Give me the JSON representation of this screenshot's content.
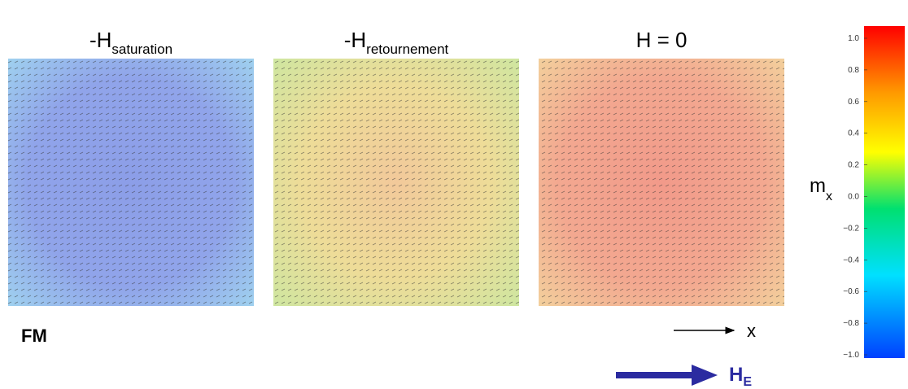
{
  "panels": [
    {
      "title": "-H",
      "subscript": "saturation"
    },
    {
      "title": "-H",
      "subscript": "retournement"
    },
    {
      "title": "H = 0"
    }
  ],
  "colorbar": {
    "label": "m",
    "label_subscript": "x",
    "lim": [
      -1,
      1
    ],
    "ticks": [
      {
        "value": 1,
        "label": "1.0"
      },
      {
        "value": 0.8,
        "label": "0.8"
      },
      {
        "value": 0.6,
        "label": "0.6"
      },
      {
        "value": 0.4,
        "label": "0.4"
      },
      {
        "value": 0.2,
        "label": "0.2"
      },
      {
        "value": 0,
        "label": "0.0"
      },
      {
        "value": -0.2,
        "label": "−0.2"
      },
      {
        "value": -0.4,
        "label": "−0.4"
      },
      {
        "value": -0.6,
        "label": "−0.6"
      },
      {
        "value": -0.8,
        "label": "−0.8"
      },
      {
        "value": -1,
        "label": "−1.0"
      }
    ]
  },
  "annotations": {
    "phase": "FM",
    "axis": "x",
    "field": "H",
    "field_subscript": "E"
  }
}
